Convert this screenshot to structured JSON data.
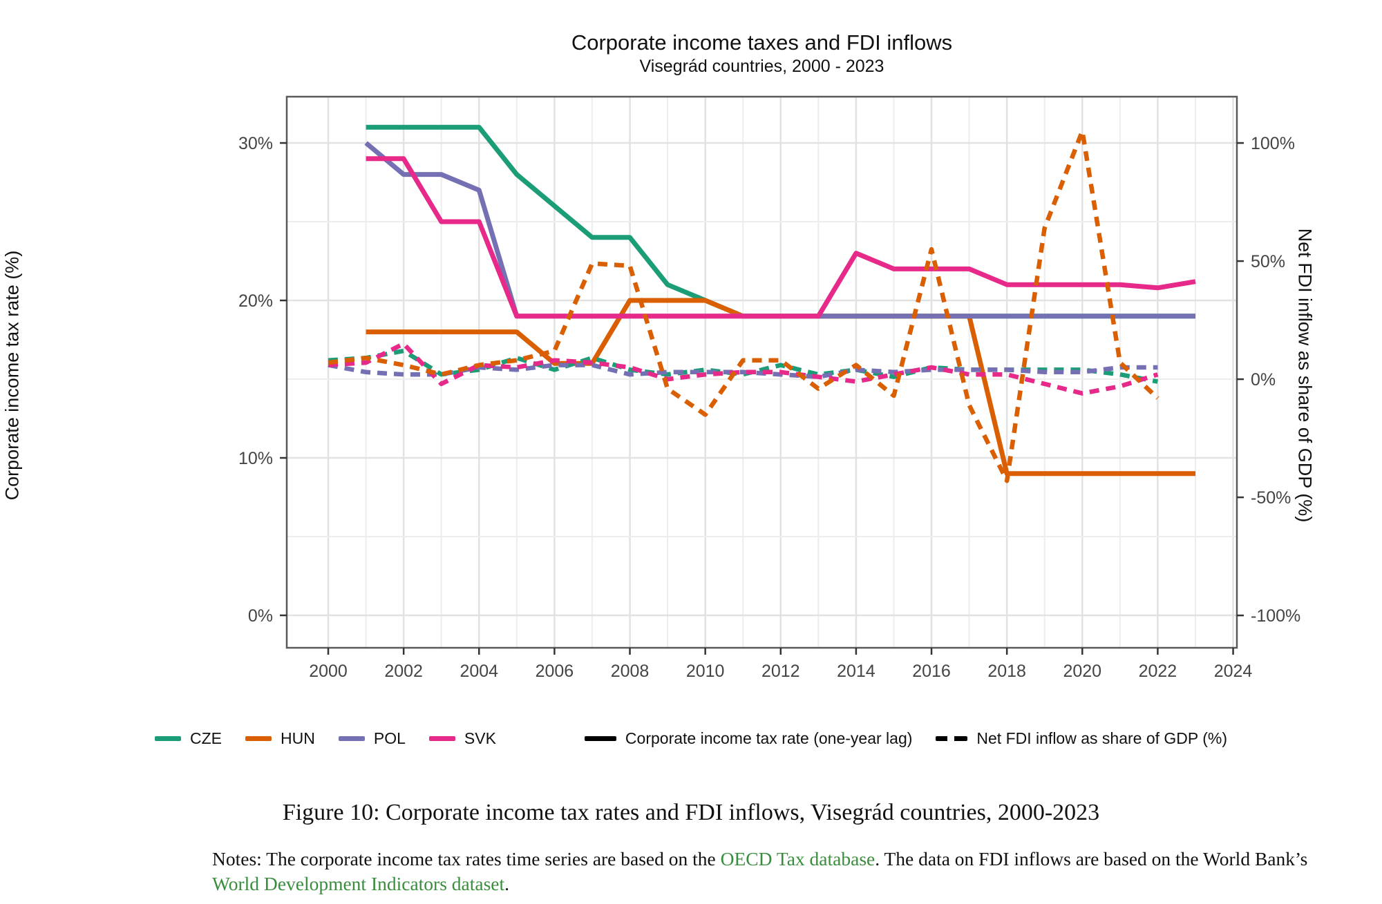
{
  "chart_data": {
    "type": "line",
    "title": "Corporate income taxes and FDI inflows",
    "subtitle": "Visegrád countries, 2000 - 2023",
    "x_axis": {
      "label": "",
      "tick_values": [
        2000,
        2002,
        2004,
        2006,
        2008,
        2010,
        2012,
        2014,
        2016,
        2018,
        2020,
        2022,
        2024
      ],
      "tick_labels": [
        "2000",
        "2002",
        "2004",
        "2006",
        "2008",
        "2010",
        "2012",
        "2014",
        "2016",
        "2018",
        "2020",
        "2022",
        "2024"
      ],
      "minor_years": [
        2001,
        2003,
        2005,
        2007,
        2009,
        2011,
        2013,
        2015,
        2017,
        2019,
        2021,
        2023
      ],
      "range": [
        1998.9,
        2024.1
      ]
    },
    "y_axis_left": {
      "label": "Corporate income tax rate (%)",
      "tick_values": [
        0,
        10,
        20,
        30
      ],
      "tick_labels": [
        "0%",
        "10%",
        "20%",
        "30%"
      ],
      "minor_values": [
        5,
        15,
        25
      ],
      "range": [
        -2.06,
        32.94
      ]
    },
    "y_axis_right": {
      "label": "Net FDI inflow as share of GDP (%)",
      "tick_values": [
        -100,
        -50,
        0,
        50,
        100
      ],
      "tick_labels": [
        "-100%",
        "-50%",
        "0%",
        "50%",
        "100%"
      ],
      "range": [
        -113.7,
        119.6
      ]
    },
    "grid": "on",
    "legend_position": "bottom",
    "series": [
      {
        "name": "CZE tax",
        "country": "CZE",
        "color": "#1b9e77",
        "style": "solid",
        "axis": "left",
        "x": [
          2001,
          2002,
          2003,
          2004,
          2005,
          2006,
          2007,
          2008,
          2009,
          2010,
          2011,
          2012,
          2013,
          2014,
          2015,
          2016,
          2017,
          2018,
          2019,
          2020,
          2021,
          2022,
          2023
        ],
        "y": [
          31,
          31,
          31,
          31,
          28,
          26,
          24,
          24,
          21,
          20,
          19,
          19,
          19,
          19,
          19,
          19,
          19,
          19,
          19,
          19,
          19,
          19,
          19
        ]
      },
      {
        "name": "HUN tax",
        "country": "HUN",
        "color": "#d95f02",
        "style": "solid",
        "axis": "left",
        "x": [
          2001,
          2002,
          2003,
          2004,
          2005,
          2006,
          2007,
          2008,
          2009,
          2010,
          2011,
          2012,
          2013,
          2014,
          2015,
          2016,
          2017,
          2018,
          2019,
          2020,
          2021,
          2022,
          2023
        ],
        "y": [
          18,
          18,
          18,
          18,
          18,
          16,
          16,
          20,
          20,
          20,
          19,
          19,
          19,
          19,
          19,
          19,
          19,
          9,
          9,
          9,
          9,
          9,
          9
        ]
      },
      {
        "name": "POL tax",
        "country": "POL",
        "color": "#7570b3",
        "style": "solid",
        "axis": "left",
        "x": [
          2001,
          2002,
          2003,
          2004,
          2005,
          2006,
          2007,
          2008,
          2009,
          2010,
          2011,
          2012,
          2013,
          2014,
          2015,
          2016,
          2017,
          2018,
          2019,
          2020,
          2021,
          2022,
          2023
        ],
        "y": [
          30,
          28,
          28,
          27,
          19,
          19,
          19,
          19,
          19,
          19,
          19,
          19,
          19,
          19,
          19,
          19,
          19,
          19,
          19,
          19,
          19,
          19,
          19
        ]
      },
      {
        "name": "SVK tax",
        "country": "SVK",
        "color": "#e7298a",
        "style": "solid",
        "axis": "left",
        "x": [
          2001,
          2002,
          2003,
          2004,
          2005,
          2006,
          2007,
          2008,
          2009,
          2010,
          2011,
          2012,
          2013,
          2014,
          2015,
          2016,
          2017,
          2018,
          2019,
          2020,
          2021,
          2022,
          2023
        ],
        "y": [
          29,
          29,
          25,
          25,
          19,
          19,
          19,
          19,
          19,
          19,
          19,
          19,
          19,
          23,
          22,
          22,
          22,
          21,
          21,
          21,
          21,
          20.8,
          21.2
        ]
      },
      {
        "name": "CZE fdi",
        "country": "CZE",
        "color": "#1b9e77",
        "style": "dashed",
        "axis": "right",
        "x": [
          2000,
          2001,
          2002,
          2003,
          2004,
          2005,
          2006,
          2007,
          2008,
          2009,
          2010,
          2011,
          2012,
          2013,
          2014,
          2015,
          2016,
          2017,
          2018,
          2019,
          2020,
          2021,
          2022
        ],
        "y": [
          8,
          9,
          12,
          2,
          4,
          9,
          4,
          9,
          4,
          2,
          4,
          2,
          6,
          2,
          4,
          1,
          5,
          4,
          4,
          4,
          4,
          2,
          -1
        ]
      },
      {
        "name": "POL fdi",
        "country": "POL",
        "color": "#7570b3",
        "style": "dashed",
        "axis": "right",
        "x": [
          2000,
          2001,
          2002,
          2003,
          2004,
          2005,
          2006,
          2007,
          2008,
          2009,
          2010,
          2011,
          2012,
          2013,
          2014,
          2015,
          2016,
          2017,
          2018,
          2019,
          2020,
          2021,
          2022
        ],
        "y": [
          6,
          3,
          2,
          2,
          5,
          4,
          6,
          6,
          2,
          3,
          3,
          3,
          2,
          1,
          4,
          3,
          4,
          4,
          4,
          3,
          3,
          5,
          5
        ]
      },
      {
        "name": "SVK fdi",
        "country": "SVK",
        "color": "#e7298a",
        "style": "dashed",
        "axis": "right",
        "x": [
          2000,
          2001,
          2002,
          2003,
          2004,
          2005,
          2006,
          2007,
          2008,
          2009,
          2010,
          2011,
          2012,
          2013,
          2014,
          2015,
          2016,
          2017,
          2018,
          2019,
          2020,
          2021,
          2022
        ],
        "y": [
          6,
          7,
          15,
          -2,
          6,
          5,
          8,
          7,
          5,
          0,
          2,
          3,
          3,
          1,
          -1,
          2,
          5,
          2,
          2,
          -2,
          -6,
          -3,
          2
        ]
      },
      {
        "name": "HUN fdi",
        "country": "HUN",
        "color": "#d95f02",
        "style": "dashed",
        "axis": "right",
        "x": [
          2000,
          2001,
          2002,
          2003,
          2004,
          2005,
          2006,
          2007,
          2008,
          2009,
          2010,
          2011,
          2012,
          2013,
          2014,
          2015,
          2016,
          2017,
          2018,
          2019,
          2020,
          2021,
          2022
        ],
        "y": [
          7,
          9,
          6,
          2,
          6,
          8,
          12,
          49,
          48,
          -4,
          -15,
          8,
          8,
          -4,
          6,
          -7,
          55,
          -11,
          -43,
          64,
          105,
          7,
          -8
        ]
      }
    ]
  },
  "legend": {
    "countries": [
      {
        "code": "CZE",
        "color": "#1b9e77"
      },
      {
        "code": "HUN",
        "color": "#d95f02"
      },
      {
        "code": "POL",
        "color": "#7570b3"
      },
      {
        "code": "SVK",
        "color": "#e7298a"
      }
    ],
    "styles": [
      {
        "label": "Corporate income tax rate (one-year lag)",
        "dash": "solid"
      },
      {
        "label": "Net FDI inflow as share of GDP (%)",
        "dash": "dashed"
      }
    ]
  },
  "caption": "Figure 10: Corporate income tax rates and FDI inflows, Visegrád countries, 2000-2023",
  "notes": {
    "segments": [
      {
        "text": "Notes: The corporate income tax rates time series are based on the ",
        "link": false
      },
      {
        "text": "OECD Tax database",
        "link": true
      },
      {
        "text": ". The data on FDI inflows are based on the World Bank’s ",
        "link": false
      },
      {
        "text": "World Development Indicators dataset",
        "link": true
      },
      {
        "text": ".",
        "link": false
      }
    ],
    "link_color": "#388e3c"
  }
}
